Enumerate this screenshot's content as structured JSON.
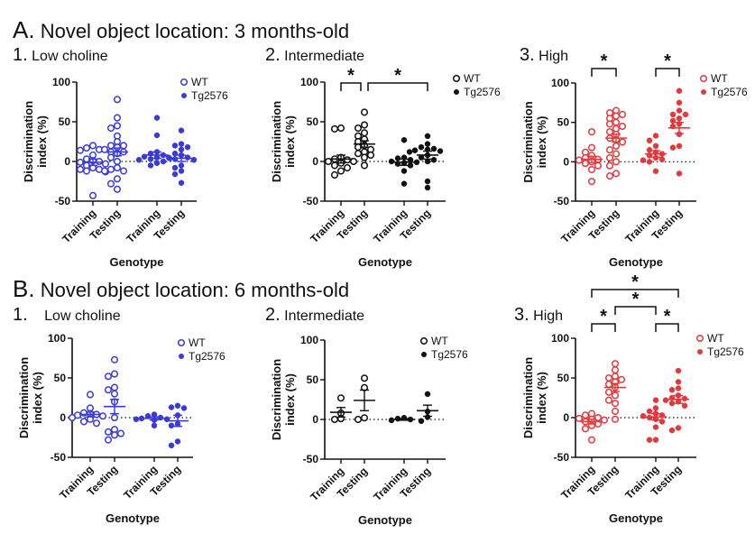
{
  "sections": [
    {
      "letter": "A.",
      "title": "Novel object location: 3 months-old"
    },
    {
      "letter": "B.",
      "title": "Novel object location: 6 months-old"
    }
  ],
  "chart_data": [
    {
      "id": "A1",
      "type": "scatter",
      "section": "A",
      "panel_number": "1.",
      "title": "Low choline",
      "color": "#3a3ad6",
      "ylabel": "Discrimination index (%)",
      "xlabel": "Genotype",
      "ylim": [
        -50,
        100
      ],
      "yticks": [
        100,
        50,
        0,
        -50
      ],
      "categories": [
        "Training",
        "Testing",
        "Training",
        "Testing"
      ],
      "legend": [
        "WT",
        "Tg2576"
      ],
      "legend_position": "top-right",
      "groups": [
        {
          "genotype": "WT",
          "phase": "Training",
          "filled": false,
          "mean": -1,
          "sem": 4,
          "values": [
            20,
            17,
            15,
            14,
            8,
            3,
            1,
            0,
            -1,
            -3,
            -5,
            -8,
            -10,
            -10,
            -12,
            -13,
            -43
          ]
        },
        {
          "genotype": "WT",
          "phase": "Testing",
          "filled": false,
          "mean": 12,
          "sem": 5,
          "values": [
            78,
            55,
            45,
            42,
            32,
            25,
            20,
            20,
            18,
            15,
            12,
            12,
            10,
            5,
            0,
            -8,
            -12,
            -12,
            -10,
            -22,
            -28,
            -35
          ]
        },
        {
          "genotype": "Tg2576",
          "phase": "Training",
          "filled": true,
          "mean": 8,
          "sem": 4,
          "values": [
            55,
            33,
            12,
            10,
            8,
            6,
            5,
            4,
            3,
            2,
            0,
            -2,
            -5
          ]
        },
        {
          "genotype": "Tg2576",
          "phase": "Testing",
          "filled": true,
          "mean": 4,
          "sem": 4,
          "values": [
            39,
            22,
            20,
            18,
            15,
            10,
            8,
            5,
            5,
            3,
            2,
            -5,
            -8,
            -12,
            -16,
            -27
          ]
        }
      ],
      "significance": []
    },
    {
      "id": "A2",
      "type": "scatter",
      "section": "A",
      "panel_number": "2.",
      "title": "Intermediate",
      "color": "#111111",
      "ylabel": "Discrimination index (%)",
      "xlabel": "Genotype",
      "ylim": [
        -50,
        100
      ],
      "yticks": [
        100,
        50,
        0,
        -50
      ],
      "categories": [
        "Training",
        "Testing",
        "Training",
        "Testing"
      ],
      "legend": [
        "WT",
        "Tg2576"
      ],
      "legend_position": "top-right",
      "groups": [
        {
          "genotype": "WT",
          "phase": "Training",
          "filled": false,
          "mean": 3,
          "sem": 5,
          "values": [
            42,
            41,
            5,
            3,
            2,
            0,
            0,
            -2,
            -5,
            -8,
            -12,
            -17
          ]
        },
        {
          "genotype": "WT",
          "phase": "Testing",
          "filled": false,
          "mean": 22,
          "sem": 4,
          "values": [
            62,
            46,
            42,
            36,
            32,
            28,
            25,
            20,
            18,
            15,
            12,
            10,
            8,
            5,
            -5
          ]
        },
        {
          "genotype": "Tg2576",
          "phase": "Training",
          "filled": true,
          "mean": -1,
          "sem": 4,
          "values": [
            27,
            5,
            4,
            2,
            0,
            -1,
            -2,
            -3,
            -5,
            -12,
            -28
          ]
        },
        {
          "genotype": "Tg2576",
          "phase": "Testing",
          "filled": true,
          "mean": 8,
          "sem": 5,
          "values": [
            32,
            22,
            18,
            16,
            15,
            14,
            13,
            12,
            8,
            5,
            2,
            0,
            -25,
            -33
          ]
        }
      ],
      "significance": [
        {
          "from": 0,
          "to": 1,
          "label": "*",
          "level": 0
        },
        {
          "from": 1,
          "to": 3,
          "label": "*",
          "level": 0
        }
      ]
    },
    {
      "id": "A3",
      "type": "scatter",
      "section": "A",
      "panel_number": "3.",
      "title": "High",
      "color": "#e03a3e",
      "ylabel": "Discrimination index (%)",
      "xlabel": "Genotype",
      "ylim": [
        -50,
        100
      ],
      "yticks": [
        100,
        50,
        0,
        -50
      ],
      "categories": [
        "Training",
        "Testing",
        "Training",
        "Testing"
      ],
      "legend": [
        "WT",
        "Tg2576"
      ],
      "legend_position": "top-right",
      "groups": [
        {
          "genotype": "WT",
          "phase": "Training",
          "filled": false,
          "mean": 3,
          "sem": 4,
          "values": [
            38,
            18,
            12,
            8,
            5,
            3,
            2,
            0,
            -2,
            -5,
            -10,
            -25
          ]
        },
        {
          "genotype": "WT",
          "phase": "Testing",
          "filled": false,
          "mean": 30,
          "sem": 5,
          "values": [
            65,
            62,
            60,
            58,
            55,
            50,
            48,
            45,
            42,
            38,
            35,
            30,
            28,
            25,
            20,
            15,
            10,
            5,
            0,
            -5,
            -15,
            -18
          ]
        },
        {
          "genotype": "Tg2576",
          "phase": "Training",
          "filled": true,
          "mean": 10,
          "sem": 4,
          "values": [
            33,
            27,
            20,
            15,
            12,
            10,
            8,
            5,
            3,
            2,
            0,
            -12
          ]
        },
        {
          "genotype": "Tg2576",
          "phase": "Testing",
          "filled": true,
          "mean": 43,
          "sem": 7,
          "values": [
            90,
            75,
            65,
            60,
            60,
            55,
            52,
            48,
            45,
            35,
            20,
            18,
            -15
          ]
        }
      ],
      "significance": [
        {
          "from": 0,
          "to": 1,
          "label": "*",
          "level": 1
        },
        {
          "from": 2,
          "to": 3,
          "label": "*",
          "level": 1
        }
      ]
    },
    {
      "id": "B1",
      "type": "scatter",
      "section": "B",
      "panel_number": "1.",
      "title": "Low choline",
      "color": "#3a3ad6",
      "ylabel": "Discrimination index (%)",
      "xlabel": "Genotype",
      "ylim": [
        -50,
        100
      ],
      "yticks": [
        100,
        50,
        0,
        -50
      ],
      "categories": [
        "Training",
        "Testing",
        "Training",
        "Testing"
      ],
      "legend": [
        "WT",
        "Tg2576"
      ],
      "legend_position": "top-right",
      "groups": [
        {
          "genotype": "WT",
          "phase": "Training",
          "filled": false,
          "mean": 4,
          "sem": 3,
          "values": [
            29,
            12,
            6,
            5,
            4,
            3,
            2,
            0,
            -2,
            -5,
            -7
          ]
        },
        {
          "genotype": "WT",
          "phase": "Testing",
          "filled": false,
          "mean": 14,
          "sem": 9,
          "values": [
            73,
            55,
            52,
            38,
            35,
            30,
            20,
            0,
            -15,
            -18,
            -20,
            -22,
            -28
          ]
        },
        {
          "genotype": "Tg2576",
          "phase": "Training",
          "filled": true,
          "mean": -1,
          "sem": 2,
          "values": [
            4,
            2,
            0,
            -1,
            -2,
            -2,
            -3,
            -10
          ]
        },
        {
          "genotype": "Tg2576",
          "phase": "Testing",
          "filled": true,
          "mean": -4,
          "sem": 7,
          "values": [
            15,
            13,
            12,
            3,
            -8,
            -10,
            -30,
            -35
          ]
        }
      ],
      "significance": []
    },
    {
      "id": "B2",
      "type": "scatter",
      "section": "B",
      "panel_number": "2.",
      "title": "Intermediate",
      "color": "#111111",
      "ylabel": "Discrimination index (%)",
      "xlabel": "Genotype",
      "ylim": [
        -50,
        100
      ],
      "yticks": [
        100,
        50,
        0,
        -50
      ],
      "categories": [
        "Training",
        "Testing",
        "Training",
        "Testing"
      ],
      "legend": [
        "WT",
        "Tg2576"
      ],
      "legend_position": "top-right",
      "groups": [
        {
          "genotype": "WT",
          "phase": "Training",
          "filled": false,
          "mean": 9,
          "sem": 6,
          "values": [
            27,
            8,
            1,
            0
          ]
        },
        {
          "genotype": "WT",
          "phase": "Testing",
          "filled": false,
          "mean": 24,
          "sem": 13,
          "values": [
            52,
            40,
            2,
            0
          ]
        },
        {
          "genotype": "Tg2576",
          "phase": "Training",
          "filled": true,
          "mean": 0,
          "sem": 1,
          "values": [
            0,
            1,
            2,
            -1
          ]
        },
        {
          "genotype": "Tg2576",
          "phase": "Testing",
          "filled": true,
          "mean": 11,
          "sem": 7,
          "values": [
            32,
            10,
            3,
            -2
          ]
        }
      ],
      "significance": []
    },
    {
      "id": "B3",
      "type": "scatter",
      "section": "B",
      "panel_number": "3.",
      "title": "High",
      "color": "#e03a3e",
      "ylabel": "Discrimination index (%)",
      "xlabel": "Genotype",
      "ylim": [
        -50,
        100
      ],
      "yticks": [
        100,
        50,
        0,
        -50
      ],
      "categories": [
        "Training",
        "Testing",
        "Training",
        "Testing"
      ],
      "legend": [
        "WT",
        "Tg2576"
      ],
      "legend_position": "top-right",
      "groups": [
        {
          "genotype": "WT",
          "phase": "Training",
          "filled": false,
          "mean": -5,
          "sem": 3,
          "values": [
            5,
            3,
            0,
            -1,
            -2,
            -3,
            -5,
            -8,
            -10,
            -14,
            -28
          ]
        },
        {
          "genotype": "WT",
          "phase": "Testing",
          "filled": false,
          "mean": 38,
          "sem": 5,
          "values": [
            68,
            60,
            52,
            50,
            48,
            45,
            42,
            38,
            32,
            28,
            22,
            18,
            8,
            -2
          ]
        },
        {
          "genotype": "Tg2576",
          "phase": "Training",
          "filled": true,
          "mean": 1,
          "sem": 4,
          "values": [
            22,
            12,
            8,
            5,
            3,
            2,
            0,
            -2,
            -5,
            -12,
            -28,
            -28
          ]
        },
        {
          "genotype": "Tg2576",
          "phase": "Testing",
          "filled": true,
          "mean": 23,
          "sem": 5,
          "values": [
            59,
            45,
            37,
            35,
            28,
            25,
            24,
            22,
            20,
            18,
            15,
            -13,
            -16
          ]
        }
      ],
      "significance": [
        {
          "from": 0,
          "to": 1,
          "label": "*",
          "level": 1
        },
        {
          "from": 2,
          "to": 3,
          "label": "*",
          "level": 1
        },
        {
          "from": 1,
          "to": 2,
          "label": "*",
          "level": 2
        },
        {
          "from": 0,
          "to": 3,
          "label": "*",
          "level": 3
        }
      ]
    }
  ]
}
